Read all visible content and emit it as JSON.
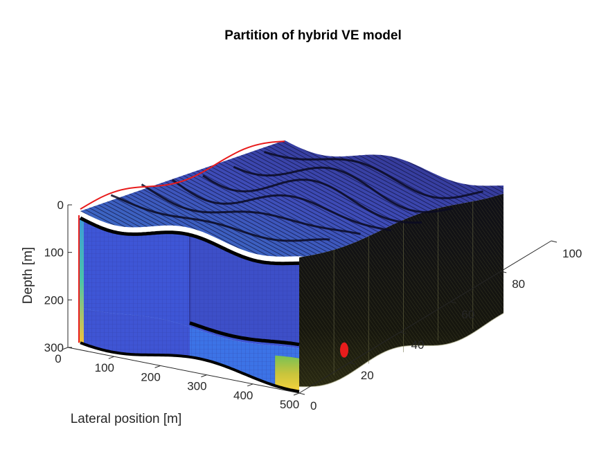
{
  "chart_data": {
    "type": "surface3d",
    "title": "Partition of hybrid VE model",
    "xlabel": "Lateral position [m]",
    "ylabel": "",
    "zlabel": "Depth [m]",
    "xlim": [
      0,
      500
    ],
    "ylim": [
      0,
      100
    ],
    "zlim": [
      0,
      300
    ],
    "x_ticks": [
      "0",
      "100",
      "200",
      "300",
      "400",
      "500"
    ],
    "y_ticks": [
      "0",
      "20",
      "40",
      "60",
      "80",
      "100"
    ],
    "z_ticks": [
      "0",
      "100",
      "200",
      "300"
    ],
    "z_reversed": true,
    "grid": false,
    "legend": "none",
    "colors": {
      "top_surface": "#3a3fa0",
      "front_upper": "#3e56d6",
      "front_mid": "#3d4fc8",
      "front_lower": "#3c73e6",
      "front_left_edge": "#f2c23a",
      "front_right_edge": "#f4c93c",
      "boundary": "#000000",
      "accent": "#e81c1c"
    }
  }
}
